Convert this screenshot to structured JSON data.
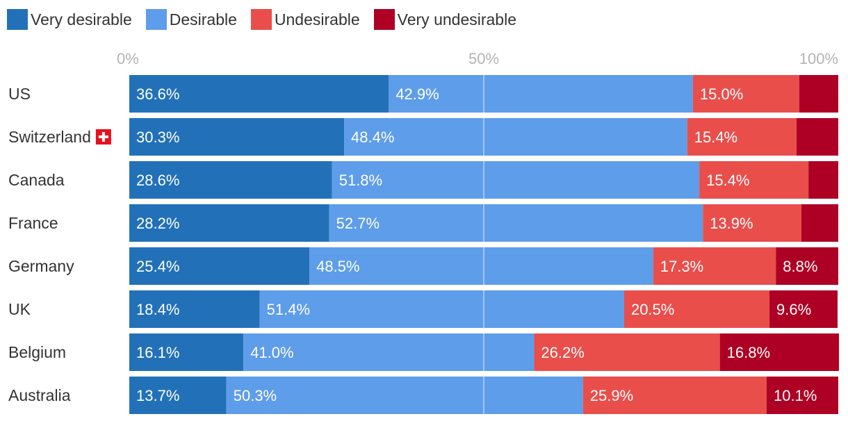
{
  "chart_data": {
    "type": "bar",
    "orientation": "horizontal",
    "stacked": true,
    "title": "",
    "xlabel": "",
    "ylabel": "",
    "xlim": [
      0,
      100
    ],
    "x_ticks": [
      "0%",
      "50%",
      "100%"
    ],
    "legend_position": "top-left",
    "categories": [
      "US",
      "Switzerland",
      "Canada",
      "France",
      "Germany",
      "UK",
      "Belgium",
      "Australia"
    ],
    "category_icons": {
      "Switzerland": "swiss-flag-icon"
    },
    "series": [
      {
        "name": "Very desirable",
        "color": "#2271b8",
        "values": [
          36.6,
          30.3,
          28.6,
          28.2,
          25.4,
          18.4,
          16.1,
          13.7
        ],
        "labels": [
          "36.6%",
          "30.3%",
          "28.6%",
          "28.2%",
          "25.4%",
          "18.4%",
          "16.1%",
          "13.7%"
        ]
      },
      {
        "name": "Desirable",
        "color": "#5e9de9",
        "values": [
          42.9,
          48.4,
          51.8,
          52.7,
          48.5,
          51.4,
          41.0,
          50.3
        ],
        "labels": [
          "42.9%",
          "48.4%",
          "51.8%",
          "52.7%",
          "48.5%",
          "51.4%",
          "41.0%",
          "50.3%"
        ]
      },
      {
        "name": "Undesirable",
        "color": "#e94e4b",
        "values": [
          15.0,
          15.4,
          15.4,
          13.9,
          17.3,
          20.5,
          26.2,
          25.9
        ],
        "labels": [
          "15.0%",
          "15.4%",
          "15.4%",
          "13.9%",
          "17.3%",
          "20.5%",
          "26.2%",
          "25.9%"
        ]
      },
      {
        "name": "Very undesirable",
        "color": "#ae0024",
        "values": [
          5.5,
          5.9,
          4.2,
          5.2,
          8.8,
          9.6,
          16.8,
          10.1
        ],
        "labels": [
          "",
          "",
          "",
          "",
          "8.8%",
          "9.6%",
          "16.8%",
          "10.1%"
        ]
      }
    ]
  }
}
